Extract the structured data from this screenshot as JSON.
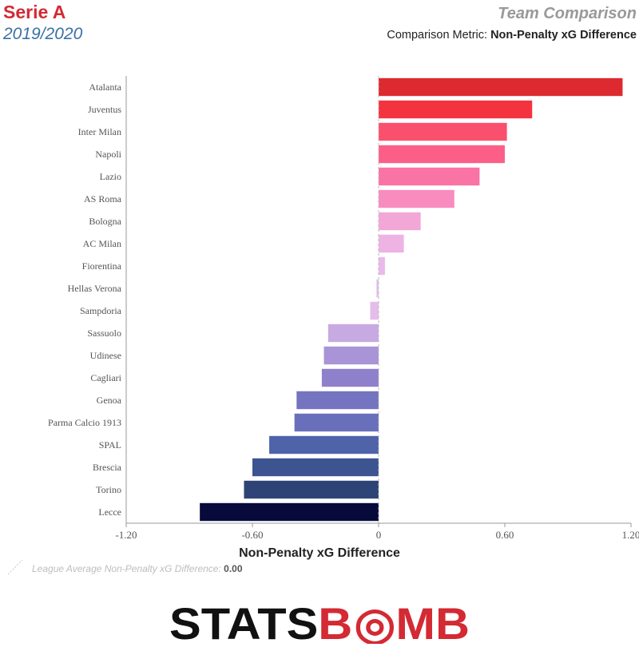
{
  "header": {
    "league": "Serie A",
    "season": "2019/2020",
    "report_title": "Team Comparison",
    "metric_prefix": "Comparison Metric: ",
    "metric_name": "Non-Penalty xG Difference"
  },
  "legend": {
    "average_label": "League Average Non-Penalty xG Difference: ",
    "average_value": "0.00"
  },
  "logo": {
    "text_left": "STATS",
    "text_b": "B",
    "text_right": "MB",
    "text_color": "#111111",
    "accent": "#d32a33"
  },
  "chart_data": {
    "type": "bar",
    "orientation": "horizontal",
    "title": "",
    "xlabel": "Non-Penalty xG Difference",
    "ylabel": "",
    "xlim": [
      -1.2,
      1.2
    ],
    "xticks": [
      -1.2,
      -0.6,
      0,
      0.6,
      1.2
    ],
    "xtick_labels": [
      "-1.20",
      "-0.60",
      "0",
      "0.60",
      "1.20"
    ],
    "reference_line": 0.0,
    "categories": [
      "Atalanta",
      "Juventus",
      "Inter Milan",
      "Napoli",
      "Lazio",
      "AS Roma",
      "Bologna",
      "AC Milan",
      "Fiorentina",
      "Hellas Verona",
      "Sampdoria",
      "Sassuolo",
      "Udinese",
      "Cagliari",
      "Genoa",
      "Parma Calcio 1913",
      "SPAL",
      "Brescia",
      "Torino",
      "Lecce"
    ],
    "values": [
      1.16,
      0.73,
      0.61,
      0.6,
      0.48,
      0.36,
      0.2,
      0.12,
      0.03,
      -0.01,
      -0.04,
      -0.24,
      -0.26,
      -0.27,
      -0.39,
      -0.4,
      -0.52,
      -0.6,
      -0.64,
      -0.85
    ],
    "colors": [
      "#dc2a30",
      "#f3343f",
      "#fb4f6e",
      "#fb5f87",
      "#fa73a5",
      "#f88cbf",
      "#f3a7d7",
      "#eeb3e3",
      "#e9b9e9",
      "#e6bcec",
      "#e5bdec",
      "#c8aae2",
      "#a894d6",
      "#8f80cb",
      "#7574c0",
      "#6a6fbb",
      "#4e63a8",
      "#3c5591",
      "#2e4477",
      "#070a3b"
    ]
  }
}
